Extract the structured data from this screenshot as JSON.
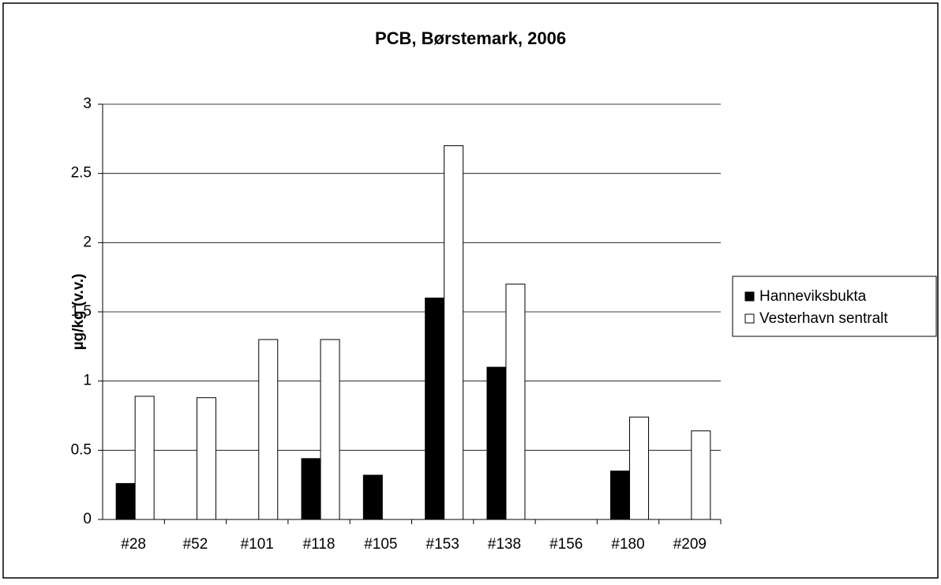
{
  "chart_data": {
    "type": "bar",
    "title": "PCB, Børstemark, 2006",
    "y_label": "µg/kg (v.v.)",
    "categories": [
      "#28",
      "#52",
      "#101",
      "#118",
      "#105",
      "#153",
      "#138",
      "#156",
      "#180",
      "#209"
    ],
    "series": [
      {
        "name": "Hanneviksbukta",
        "color": "#000000",
        "values": [
          0.26,
          null,
          null,
          0.44,
          0.32,
          1.6,
          1.1,
          null,
          0.35,
          null
        ]
      },
      {
        "name": "Vesterhavn sentralt",
        "color": "#ffffff",
        "values": [
          0.89,
          0.88,
          1.3,
          1.3,
          null,
          2.7,
          1.7,
          null,
          0.74,
          0.64
        ]
      }
    ],
    "ylim": [
      0,
      3
    ],
    "yticks": [
      0,
      0.5,
      1,
      1.5,
      2,
      2.5,
      3
    ],
    "grid": true,
    "legend": "right"
  }
}
